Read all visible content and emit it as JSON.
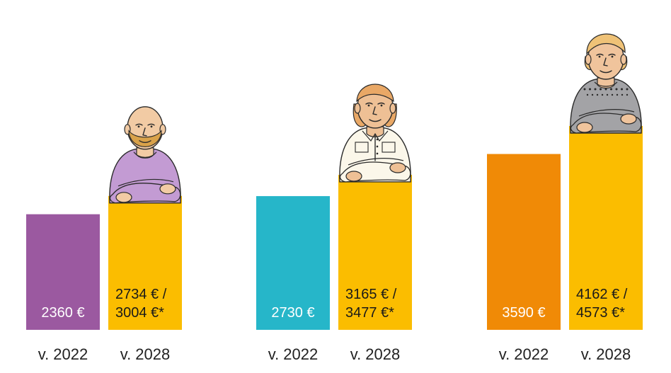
{
  "chart_data": {
    "type": "bar",
    "title": "",
    "xlabel": "",
    "ylabel": "",
    "ylim": [
      0,
      4573
    ],
    "groups": [
      {
        "bars": [
          {
            "category": "v. 2022",
            "value": 2360,
            "label_lines": [
              "2360 €"
            ],
            "color": "#9b59a0",
            "text_color": "#ffffff"
          },
          {
            "category": "v. 2028",
            "value": 2734,
            "value_alt": 3004,
            "label_lines": [
              "2734 € /",
              "3004 €*"
            ],
            "color": "#fbbd00",
            "text_color": "#1a1a1a"
          }
        ]
      },
      {
        "bars": [
          {
            "category": "v. 2022",
            "value": 2730,
            "label_lines": [
              "2730 €"
            ],
            "color": "#26b6c9",
            "text_color": "#ffffff"
          },
          {
            "category": "v. 2028",
            "value": 3165,
            "value_alt": 3477,
            "label_lines": [
              "3165 € /",
              "3477 €*"
            ],
            "color": "#fbbd00",
            "text_color": "#1a1a1a"
          }
        ]
      },
      {
        "bars": [
          {
            "category": "v. 2022",
            "value": 3590,
            "label_lines": [
              "3590 €"
            ],
            "color": "#f08a06",
            "text_color": "#ffffff"
          },
          {
            "category": "v. 2028",
            "value": 4162,
            "value_alt": 4573,
            "label_lines": [
              "4162 € /",
              "4573 €*"
            ],
            "color": "#fbbd00",
            "text_color": "#1a1a1a"
          }
        ]
      }
    ],
    "illustrations": [
      "bald-bearded-man-illustration",
      "young-woman-illustration",
      "older-woman-illustration"
    ]
  }
}
